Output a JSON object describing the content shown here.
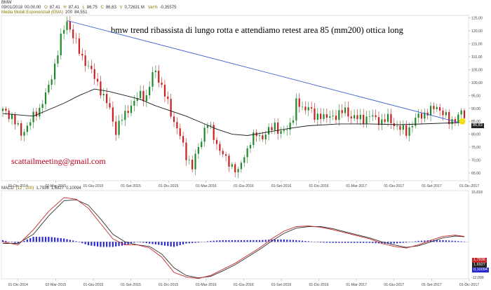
{
  "symbol": "BMW",
  "ohlc": {
    "date": "09/01/2018",
    "time": "00.00.00",
    "open_label": "O",
    "open": "87,41",
    "high_label": "H",
    "high": "87,41",
    "low_label": "L",
    "low": "86,75",
    "close_label": "C",
    "close": "86,83",
    "volume_label": "V",
    "volume": "0,72631 M",
    "var_label": "Var%",
    "var": "-0,35575"
  },
  "ema": {
    "label": "Media Mobili Esponenziali (EMA)",
    "period": "200",
    "value": "84,551"
  },
  "annotation": "bmw trend ribassista di lungo rotta e attendiamo retest area 85 (mm200) ottica long",
  "watermark": "scattailmeeting@gmail.com",
  "macd": {
    "label": "MACD",
    "params": "(12 , 200)",
    "value1": "1,7936",
    "value2": "1,6927",
    "value3": "0,10094"
  },
  "colors": {
    "trendline": "#3f5fd0",
    "macd_line": "#c62828",
    "signal_line": "#333333",
    "histogram": "#2a2acc",
    "highlight": "#f4e200",
    "price_tag": "#222222"
  },
  "chart_data": [
    {
      "type": "candlestick",
      "x_tick_labels": [
        "01-Dic-2014",
        "02-Mar-2015",
        "01-Giu-2015",
        "01-Set-2015",
        "01-Dic-2015",
        "01-Mar-2016",
        "01-Giu-2016",
        "01-Set-2016",
        "01-Dic-2016",
        "01-Mar-2017",
        "01-Giu-2017",
        "01-Set-2017",
        "01-Dic-2017"
      ],
      "y_tick_labels": [
        "65,00",
        "70,00",
        "75,00",
        "80,00",
        "85,00",
        "90,00",
        "95,00",
        "100,00",
        "105,00",
        "110,00",
        "115,00",
        "120,00",
        "125,00"
      ],
      "ylim": [
        62,
        126
      ],
      "last_price_label": "86,83",
      "price_path": [
        [
          0,
          89
        ],
        [
          3,
          87
        ],
        [
          6,
          80
        ],
        [
          9,
          85
        ],
        [
          12,
          90
        ],
        [
          15,
          98
        ],
        [
          17,
          107
        ],
        [
          19,
          117
        ],
        [
          21,
          124
        ],
        [
          23,
          118
        ],
        [
          25,
          112
        ],
        [
          27,
          108
        ],
        [
          29,
          104
        ],
        [
          31,
          100
        ],
        [
          33,
          94
        ],
        [
          35,
          90
        ],
        [
          37,
          81
        ],
        [
          39,
          86
        ],
        [
          41,
          90
        ],
        [
          43,
          92
        ],
        [
          45,
          96
        ],
        [
          47,
          94
        ],
        [
          49,
          103
        ],
        [
          50,
          105
        ],
        [
          52,
          98
        ],
        [
          54,
          92
        ],
        [
          56,
          85
        ],
        [
          58,
          79
        ],
        [
          60,
          72
        ],
        [
          62,
          67
        ],
        [
          64,
          75
        ],
        [
          66,
          82
        ],
        [
          67,
          84
        ],
        [
          69,
          79
        ],
        [
          71,
          74
        ],
        [
          73,
          70
        ],
        [
          75,
          68
        ],
        [
          77,
          65
        ],
        [
          79,
          72
        ],
        [
          81,
          77
        ],
        [
          83,
          80
        ],
        [
          85,
          79
        ],
        [
          87,
          81
        ],
        [
          89,
          84
        ],
        [
          91,
          80
        ],
        [
          93,
          82
        ],
        [
          95,
          87
        ],
        [
          96,
          92
        ],
        [
          98,
          90
        ],
        [
          100,
          91
        ],
        [
          102,
          86
        ],
        [
          104,
          88
        ],
        [
          106,
          86
        ],
        [
          108,
          87
        ],
        [
          110,
          88
        ],
        [
          112,
          89
        ],
        [
          114,
          87
        ],
        [
          116,
          86
        ],
        [
          118,
          86
        ],
        [
          120,
          87
        ],
        [
          122,
          86
        ],
        [
          124,
          85
        ],
        [
          126,
          86
        ],
        [
          128,
          84
        ],
        [
          130,
          82
        ],
        [
          132,
          81
        ],
        [
          134,
          84
        ],
        [
          136,
          87
        ],
        [
          138,
          88
        ],
        [
          140,
          89
        ],
        [
          142,
          91
        ],
        [
          144,
          88
        ],
        [
          146,
          85
        ],
        [
          148,
          86
        ],
        [
          150,
          88
        ],
        [
          151,
          87
        ]
      ],
      "ema200_path": [
        [
          0,
          88
        ],
        [
          10,
          87
        ],
        [
          20,
          92
        ],
        [
          25,
          95
        ],
        [
          30,
          97.5
        ],
        [
          35,
          96.5
        ],
        [
          40,
          95
        ],
        [
          45,
          93.5
        ],
        [
          50,
          91
        ],
        [
          55,
          89
        ],
        [
          60,
          87
        ],
        [
          65,
          84.5
        ],
        [
          70,
          82
        ],
        [
          75,
          80
        ],
        [
          80,
          79.5
        ],
        [
          85,
          80.5
        ],
        [
          90,
          81.5
        ],
        [
          95,
          82.5
        ],
        [
          100,
          83.3
        ],
        [
          110,
          84
        ],
        [
          120,
          84
        ],
        [
          130,
          83.7
        ],
        [
          140,
          84.1
        ],
        [
          151,
          84.55
        ]
      ],
      "trendline": [
        [
          21,
          124
        ],
        [
          151,
          84
        ]
      ]
    },
    {
      "type": "macd",
      "y_tick_labels": [
        "16,818",
        "-12,099"
      ],
      "ylim": [
        -12.099,
        16.818
      ],
      "macd_path": [
        [
          0,
          0
        ],
        [
          5,
          -1
        ],
        [
          10,
          4
        ],
        [
          15,
          10
        ],
        [
          20,
          14.5
        ],
        [
          24,
          14
        ],
        [
          28,
          11
        ],
        [
          32,
          6
        ],
        [
          36,
          1
        ],
        [
          40,
          -1
        ],
        [
          44,
          -1
        ],
        [
          48,
          -2
        ],
        [
          52,
          -5
        ],
        [
          56,
          -10
        ],
        [
          60,
          -11.5
        ],
        [
          64,
          -12
        ],
        [
          68,
          -11
        ],
        [
          72,
          -9
        ],
        [
          76,
          -7
        ],
        [
          80,
          -4.5
        ],
        [
          84,
          -2
        ],
        [
          88,
          1
        ],
        [
          92,
          3.5
        ],
        [
          96,
          5
        ],
        [
          100,
          5.2
        ],
        [
          104,
          4.8
        ],
        [
          108,
          4
        ],
        [
          112,
          3
        ],
        [
          116,
          2
        ],
        [
          120,
          1
        ],
        [
          124,
          -0.5
        ],
        [
          128,
          -1.5
        ],
        [
          132,
          -2
        ],
        [
          136,
          -1
        ],
        [
          140,
          0.5
        ],
        [
          144,
          1.8
        ],
        [
          148,
          2.2
        ],
        [
          151,
          1.8
        ]
      ],
      "signal_path": [
        [
          0,
          -0.5
        ],
        [
          5,
          -0.5
        ],
        [
          10,
          2.5
        ],
        [
          15,
          8.5
        ],
        [
          20,
          13.5
        ],
        [
          24,
          13.8
        ],
        [
          28,
          12
        ],
        [
          32,
          7.5
        ],
        [
          36,
          2.5
        ],
        [
          40,
          0
        ],
        [
          44,
          -1
        ],
        [
          48,
          -1.5
        ],
        [
          52,
          -4
        ],
        [
          56,
          -8.5
        ],
        [
          60,
          -11
        ],
        [
          64,
          -11.8
        ],
        [
          68,
          -11.3
        ],
        [
          72,
          -9.5
        ],
        [
          76,
          -7.5
        ],
        [
          80,
          -5
        ],
        [
          84,
          -2.5
        ],
        [
          88,
          0.3
        ],
        [
          92,
          2.8
        ],
        [
          96,
          4.5
        ],
        [
          100,
          5
        ],
        [
          104,
          5
        ],
        [
          108,
          4.3
        ],
        [
          112,
          3.3
        ],
        [
          116,
          2.3
        ],
        [
          120,
          1.3
        ],
        [
          124,
          0
        ],
        [
          128,
          -1
        ],
        [
          132,
          -1.8
        ],
        [
          136,
          -1.3
        ],
        [
          140,
          0
        ],
        [
          144,
          1.3
        ],
        [
          148,
          1.9
        ],
        [
          151,
          1.7
        ]
      ]
    }
  ]
}
